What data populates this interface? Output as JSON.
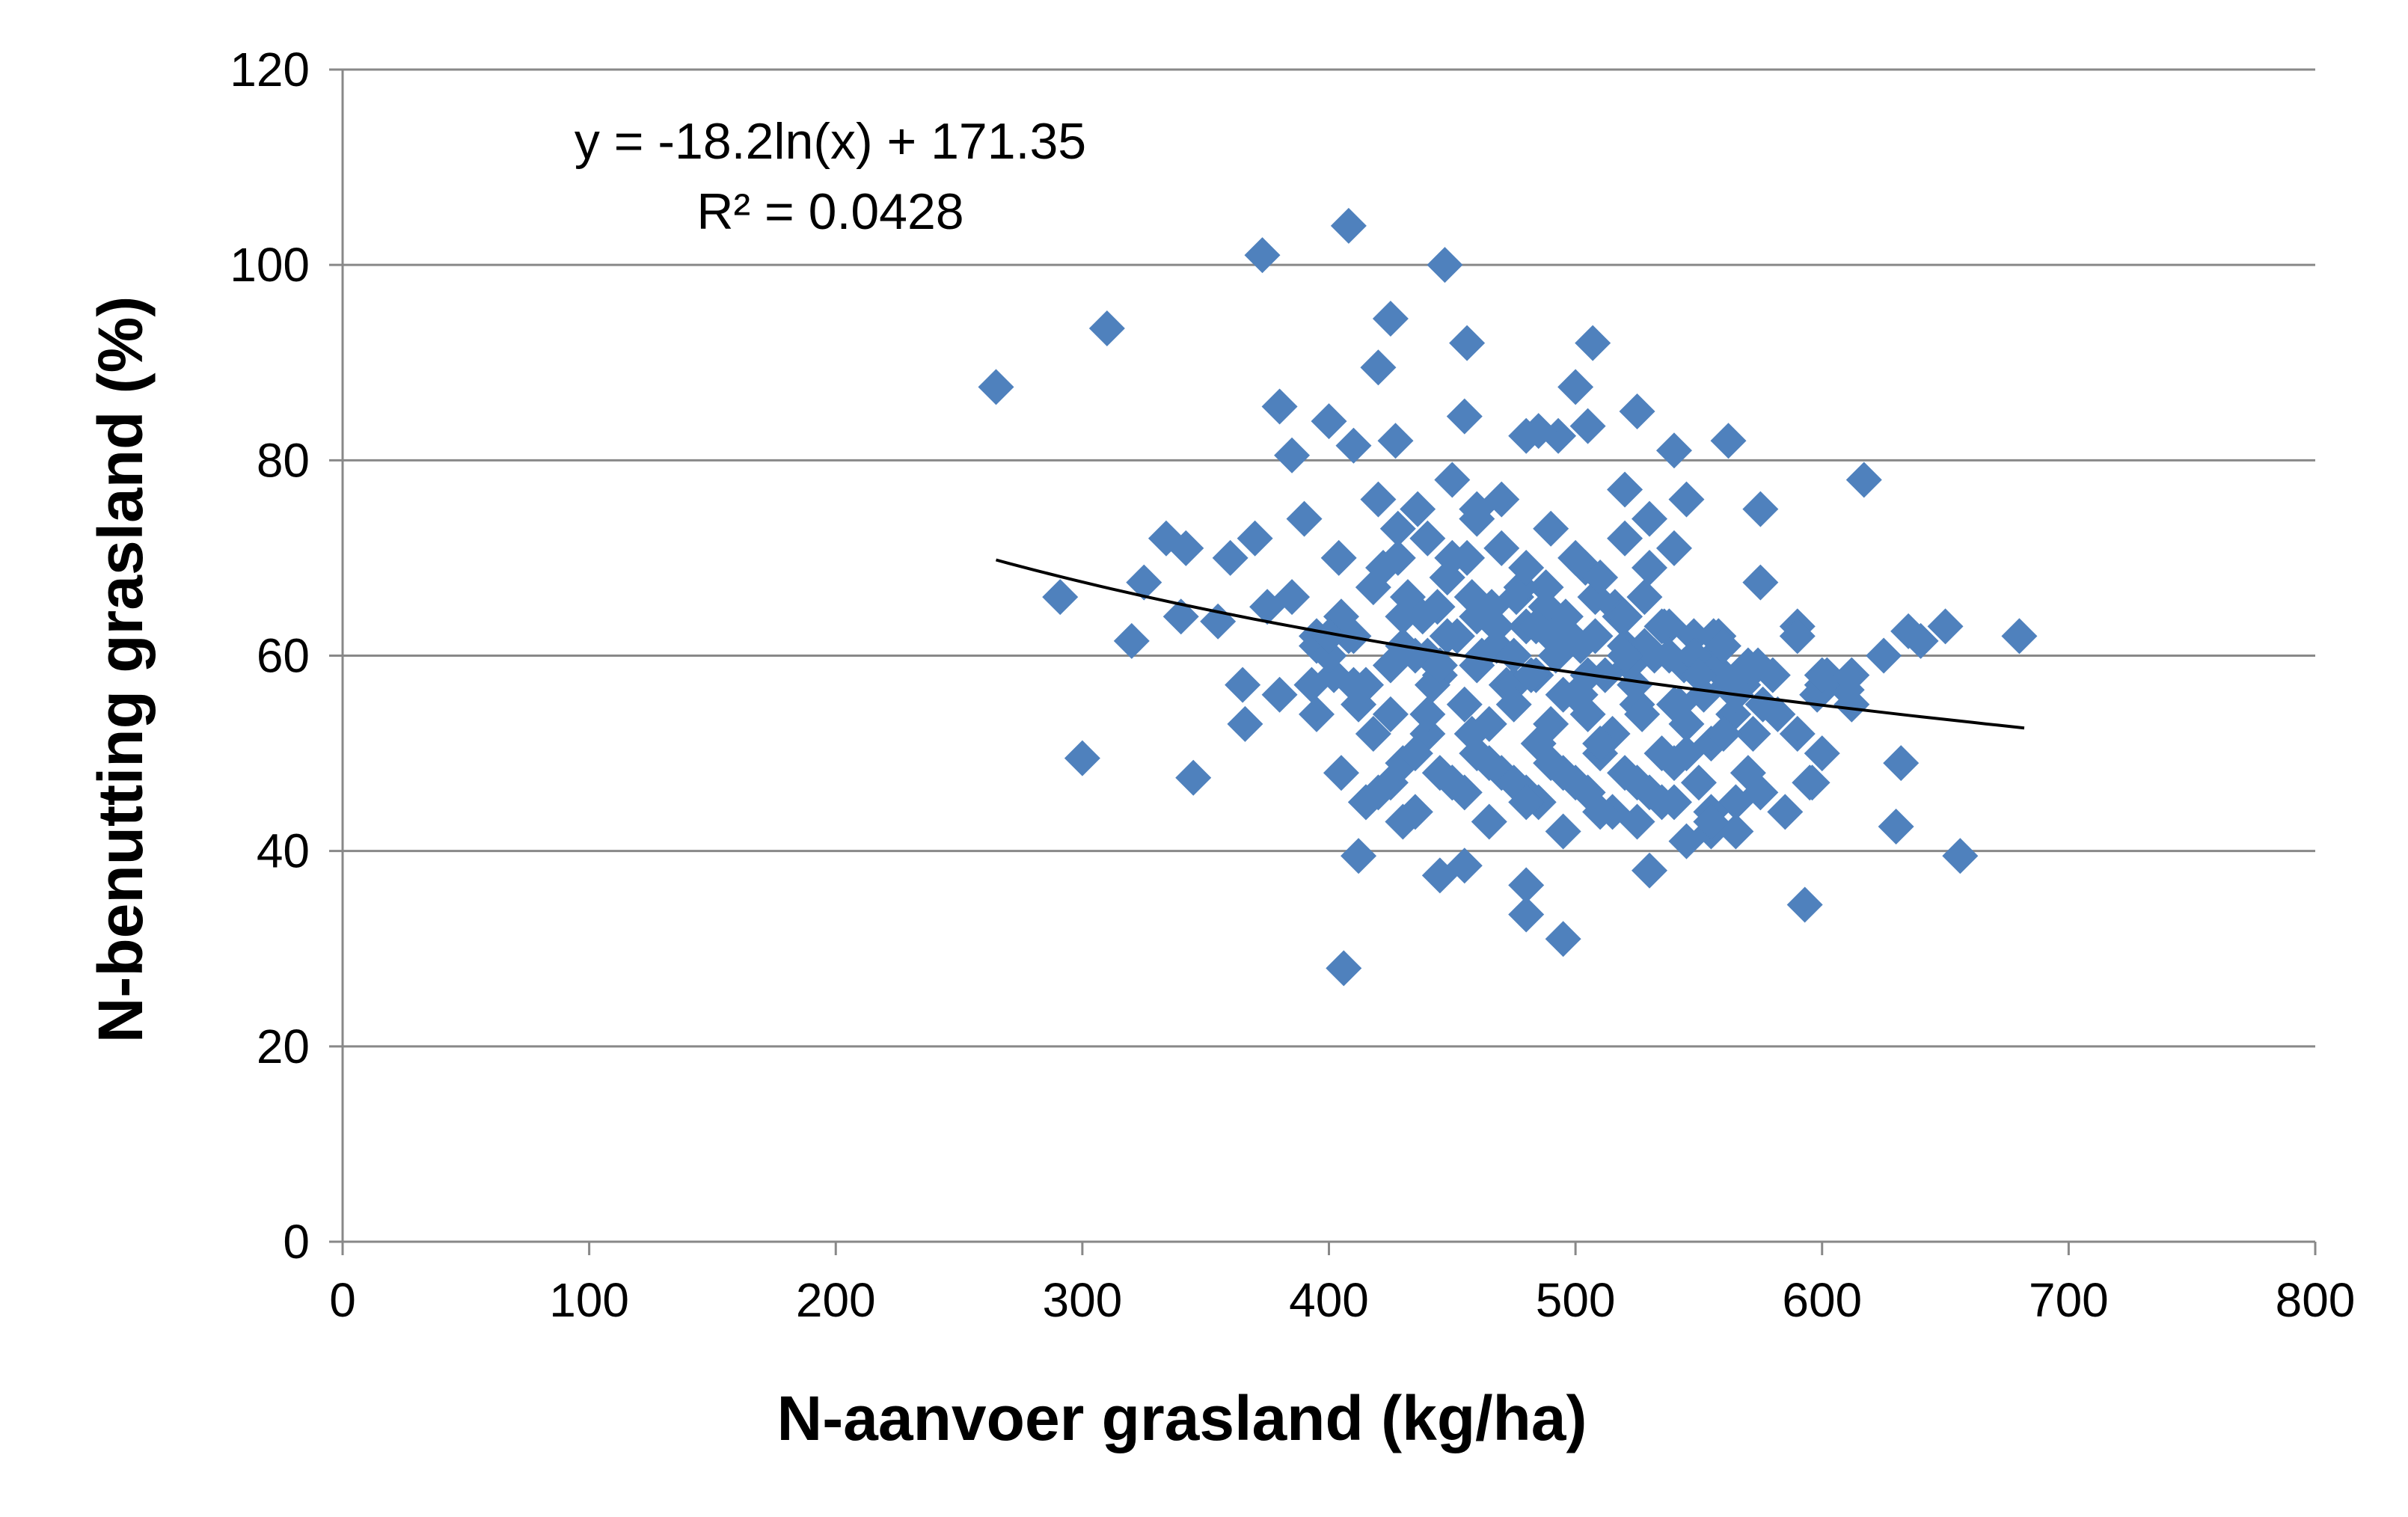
{
  "chart_data": {
    "type": "scatter",
    "xlabel": "N-aanvoer grasland (kg/ha)",
    "ylabel": "N-benutting grasland (%)",
    "xlim": [
      0,
      800
    ],
    "ylim": [
      0,
      120
    ],
    "x_ticks": [
      "0",
      "100",
      "200",
      "300",
      "400",
      "500",
      "600",
      "700",
      "800"
    ],
    "y_ticks": [
      "0",
      "20",
      "40",
      "60",
      "80",
      "100",
      "120"
    ],
    "grid": "horizontal",
    "legend": "none",
    "trendline": {
      "type": "logarithmic",
      "equation": "y = -18.2ln(x) + 171.35",
      "r_squared": "R² = 0.0428",
      "a": -18.2,
      "b": 171.35,
      "x_range": [
        265,
        682
      ]
    },
    "colors": {
      "marker": "#4F81BD",
      "trendline": "#000000",
      "grid": "#888888"
    },
    "series": [
      {
        "marker": "diamond",
        "x": [
          265,
          310,
          373,
          408,
          447,
          300,
          291,
          345,
          320,
          325,
          334,
          342,
          360,
          370,
          366,
          380,
          385,
          390,
          393,
          400,
          404,
          410,
          415,
          420,
          425,
          420,
          427,
          430,
          456,
          455,
          617,
          680,
          650,
          635,
          656,
          630,
          632,
          596,
          593,
          562,
          575,
          575,
          540,
          525,
          507,
          500,
          505,
          493,
          480,
          485,
          406,
          412,
          445,
          455,
          495,
          480,
          480,
          530,
          555,
          565,
          585,
          600,
          610,
          625,
          640,
          340,
          355,
          375,
          365,
          385,
          395,
          402,
          408,
          412,
          418,
          422,
          428,
          432,
          436,
          440,
          444,
          448,
          452,
          456,
          460,
          464,
          468,
          472,
          476,
          480,
          484,
          488,
          492,
          496,
          500,
          504,
          508,
          512,
          516,
          520,
          524,
          528,
          532,
          536,
          540,
          544,
          548,
          552,
          556,
          560,
          564,
          568,
          572,
          576,
          580,
          590,
          600,
          395,
          405,
          415,
          425,
          435,
          445,
          455,
          465,
          475,
          485,
          495,
          505,
          515,
          525,
          535,
          545,
          555,
          565,
          418,
          428,
          438,
          448,
          458,
          468,
          478,
          488,
          498,
          508,
          518,
          528,
          538,
          548,
          558,
          430,
          440,
          450,
          460,
          470,
          480,
          490,
          500,
          510,
          520,
          530,
          540,
          550,
          440,
          450,
          460,
          470,
          480,
          490,
          500,
          510,
          520,
          530,
          540,
          415,
          425,
          435,
          445,
          455,
          465,
          475,
          485,
          495,
          505,
          515,
          525,
          535,
          545,
          555,
          565,
          575,
          405,
          420,
          435,
          450,
          465,
          480,
          495,
          510,
          525,
          540,
          555,
          570,
          400,
          410,
          470,
          450,
          460,
          520,
          530,
          545,
          440,
          458,
          475,
          490,
          510,
          527,
          545,
          560,
          425,
          442,
          462,
          482,
          502,
          522,
          542,
          562,
          582,
          598,
          612,
          600,
          590,
          430,
          448,
          466,
          484,
          502,
          520,
          538,
          556,
          574,
          380,
          395,
          410,
          590,
          602,
          595,
          612,
          570,
          560,
          550,
          535,
          520,
          505,
          490,
          475,
          460,
          445,
          430,
          415,
          400
        ],
        "y": [
          87.5,
          93.5,
          101,
          104,
          100,
          49.5,
          66,
          47.5,
          61.5,
          67.5,
          72,
          71,
          70,
          72,
          53,
          85.5,
          80.5,
          74,
          57,
          84,
          70,
          81.5,
          45,
          89.5,
          94.5,
          76,
          82,
          43,
          92,
          84.5,
          78,
          62,
          63,
          62.5,
          39.5,
          42.5,
          49,
          47,
          34.5,
          82,
          75,
          67.5,
          81,
          85,
          92,
          87.5,
          83.5,
          82.5,
          82.5,
          83,
          28,
          39.5,
          37.5,
          38.5,
          31,
          33.5,
          36.5,
          38,
          42,
          45,
          44,
          50,
          56.5,
          60,
          61.5,
          64,
          63.5,
          65,
          57,
          66,
          62,
          58,
          62,
          55,
          52,
          69,
          73,
          66,
          75,
          60,
          65,
          68,
          62,
          70,
          59,
          64,
          61,
          57,
          66,
          63,
          58,
          67,
          60,
          64,
          56,
          69,
          62,
          58,
          65,
          61,
          57,
          66,
          60,
          63,
          55,
          59,
          62,
          56,
          60,
          58,
          54,
          57,
          52,
          55,
          58,
          52,
          57,
          61,
          64,
          57,
          54,
          60,
          58,
          55,
          53,
          57,
          51,
          56,
          54,
          52,
          55,
          50,
          53,
          51,
          56,
          67,
          70,
          64,
          68,
          66,
          63,
          67,
          65,
          62,
          66,
          64,
          61,
          63,
          60,
          62,
          49,
          52,
          47,
          50,
          48,
          46,
          49,
          47,
          50,
          48,
          46,
          49,
          47,
          72,
          70,
          74,
          71,
          69,
          73,
          70,
          68,
          72,
          69,
          71,
          45,
          47,
          44,
          48,
          46,
          43,
          47,
          45,
          42,
          46,
          44,
          43,
          45,
          41,
          44,
          42,
          46,
          48,
          46,
          50,
          47,
          49,
          45,
          48,
          44,
          47,
          45,
          43,
          48,
          60,
          62,
          76,
          78,
          75,
          77,
          74,
          76,
          54,
          52,
          55,
          53,
          51,
          54,
          50,
          52,
          59,
          57,
          60,
          58,
          56,
          59,
          55,
          57,
          54,
          56,
          55,
          58,
          63,
          64,
          62,
          65,
          63,
          61,
          64,
          60,
          62,
          59,
          56,
          54,
          57,
          62,
          58,
          47,
          58,
          59,
          61,
          58,
          63,
          60,
          58,
          62,
          60,
          64,
          59,
          61,
          57,
          62
        ]
      }
    ]
  }
}
